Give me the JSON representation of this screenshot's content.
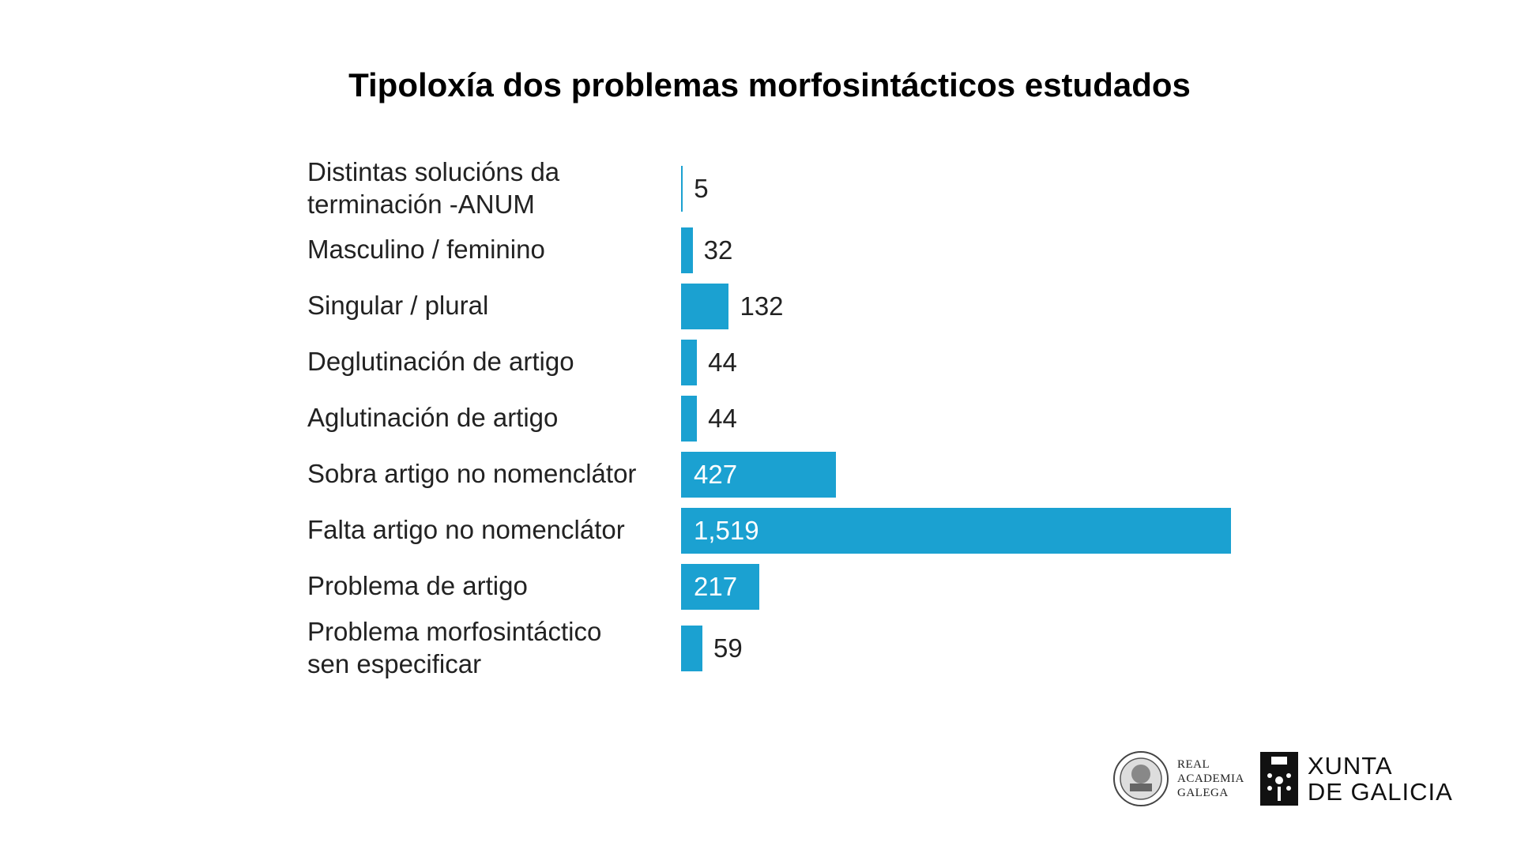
{
  "chart_data": {
    "type": "barh",
    "title": "Tipoloxía dos problemas morfosintácticos estudados",
    "categories": [
      "Distintas solucións da\nterminación -ANUM",
      "Masculino / feminino",
      "Singular / plural",
      "Deglutinación de artigo",
      "Aglutinación de artigo",
      "Sobra artigo no nomenclátor",
      "Falta artigo no nomenclátor",
      "Problema de artigo",
      "Problema morfosintáctico\nsen especificar"
    ],
    "values": [
      5,
      32,
      132,
      44,
      44,
      427,
      1519,
      217,
      59
    ],
    "value_labels": [
      "5",
      "32",
      "132",
      "44",
      "44",
      "427",
      "1,519",
      "217",
      "59"
    ],
    "color": "#1ba1d1"
  },
  "logos": {
    "academia": "REAL\nACADEMIA\nGALEGA",
    "xunta": "XUNTA\nDE GALICIA"
  }
}
